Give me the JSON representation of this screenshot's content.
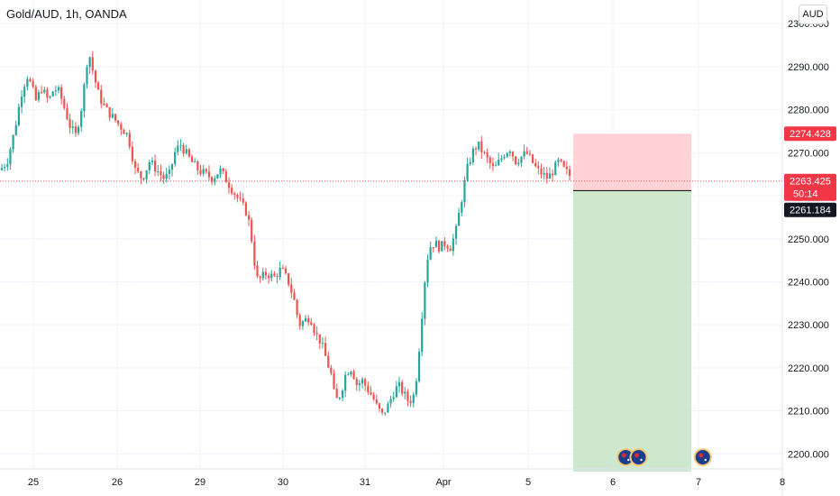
{
  "header": {
    "title": "Gold/AUD, 1h, OANDA",
    "currency_button": "AUD"
  },
  "price_tags": {
    "stop": "2274.428",
    "last": "2263.425",
    "countdown": "50:14",
    "entry": "2261.184"
  },
  "colors": {
    "up": "#26a69a",
    "down": "#ef5350",
    "grid": "#f0f3fa",
    "stop_zone": "#ffcdd2",
    "target_zone": "#c8e6c9",
    "axis_text": "#131722"
  },
  "chart_data": {
    "type": "candlestick",
    "symbol": "Gold/AUD",
    "interval": "1h",
    "source": "OANDA",
    "y_ticks": [
      2300,
      2290,
      2280,
      2270,
      2260,
      2250,
      2240,
      2230,
      2220,
      2210,
      2200
    ],
    "y_tick_labels": [
      "2300.000",
      "2290.000",
      "2280.000",
      "2270.000",
      "2260.000",
      "2250.000",
      "2240.000",
      "2230.000",
      "2220.000",
      "2210.000",
      "2200.000"
    ],
    "ylim": [
      2196.5,
      2305.5
    ],
    "x_ticks": [
      "25",
      "26",
      "29",
      "30",
      "31",
      "Apr",
      "5",
      "6",
      "7",
      "8"
    ],
    "grid": true,
    "close_path": [
      [
        0,
        2266
      ],
      [
        8,
        2268
      ],
      [
        16,
        2275
      ],
      [
        24,
        2284
      ],
      [
        30,
        2288
      ],
      [
        34,
        2286
      ],
      [
        40,
        2282
      ],
      [
        46,
        2285
      ],
      [
        54,
        2282
      ],
      [
        60,
        2285
      ],
      [
        66,
        2284
      ],
      [
        72,
        2280
      ],
      [
        78,
        2276
      ],
      [
        84,
        2274
      ],
      [
        90,
        2280
      ],
      [
        95,
        2288
      ],
      [
        98,
        2294
      ],
      [
        104,
        2288
      ],
      [
        110,
        2283
      ],
      [
        118,
        2280
      ],
      [
        126,
        2278
      ],
      [
        134,
        2276
      ],
      [
        142,
        2274
      ],
      [
        150,
        2266
      ],
      [
        158,
        2264
      ],
      [
        166,
        2268
      ],
      [
        174,
        2266
      ],
      [
        182,
        2264
      ],
      [
        188,
        2265
      ],
      [
        194,
        2270
      ],
      [
        200,
        2272
      ],
      [
        206,
        2270
      ],
      [
        212,
        2268
      ],
      [
        220,
        2266
      ],
      [
        228,
        2265
      ],
      [
        236,
        2264
      ],
      [
        244,
        2266
      ],
      [
        250,
        2264
      ],
      [
        256,
        2262
      ],
      [
        262,
        2260
      ],
      [
        268,
        2258
      ],
      [
        274,
        2256
      ],
      [
        278,
        2252
      ],
      [
        282,
        2245
      ],
      [
        286,
        2240
      ],
      [
        290,
        2241
      ],
      [
        296,
        2242
      ],
      [
        304,
        2241
      ],
      [
        312,
        2243
      ],
      [
        320,
        2240
      ],
      [
        326,
        2236
      ],
      [
        332,
        2230
      ],
      [
        338,
        2231
      ],
      [
        344,
        2232
      ],
      [
        350,
        2228
      ],
      [
        356,
        2226
      ],
      [
        362,
        2222
      ],
      [
        368,
        2218
      ],
      [
        372,
        2212
      ],
      [
        378,
        2214
      ],
      [
        384,
        2219
      ],
      [
        390,
        2220
      ],
      [
        396,
        2216
      ],
      [
        402,
        2217
      ],
      [
        408,
        2215
      ],
      [
        414,
        2213
      ],
      [
        418,
        2211
      ],
      [
        424,
        2209
      ],
      [
        430,
        2211
      ],
      [
        436,
        2214
      ],
      [
        442,
        2216
      ],
      [
        448,
        2214
      ],
      [
        454,
        2212
      ],
      [
        460,
        2214
      ],
      [
        464,
        2222
      ],
      [
        468,
        2232
      ],
      [
        472,
        2242
      ],
      [
        476,
        2248
      ],
      [
        482,
        2249
      ],
      [
        488,
        2248
      ],
      [
        494,
        2249
      ],
      [
        500,
        2248
      ],
      [
        506,
        2252
      ],
      [
        512,
        2259
      ],
      [
        518,
        2266
      ],
      [
        524,
        2270
      ],
      [
        530,
        2272
      ],
      [
        536,
        2270
      ],
      [
        542,
        2268
      ],
      [
        548,
        2266
      ],
      [
        554,
        2268
      ],
      [
        560,
        2270
      ],
      [
        566,
        2271
      ],
      [
        572,
        2268
      ],
      [
        578,
        2269
      ],
      [
        584,
        2270
      ],
      [
        590,
        2268
      ],
      [
        596,
        2266
      ],
      [
        602,
        2265
      ],
      [
        608,
        2264
      ],
      [
        614,
        2266
      ],
      [
        620,
        2268
      ],
      [
        626,
        2266
      ],
      [
        631,
        2265
      ],
      [
        636,
        2263.4
      ]
    ],
    "position": {
      "type": "short",
      "entry": 2261.184,
      "stop": 2274.428,
      "target": 2196.5,
      "last_price": 2263.425
    },
    "event_markers": [
      {
        "x_label": "6",
        "offset": 0.15
      },
      {
        "x_label": "6",
        "offset": 0.3
      },
      {
        "x_label": "7",
        "offset": 0.05
      }
    ]
  }
}
